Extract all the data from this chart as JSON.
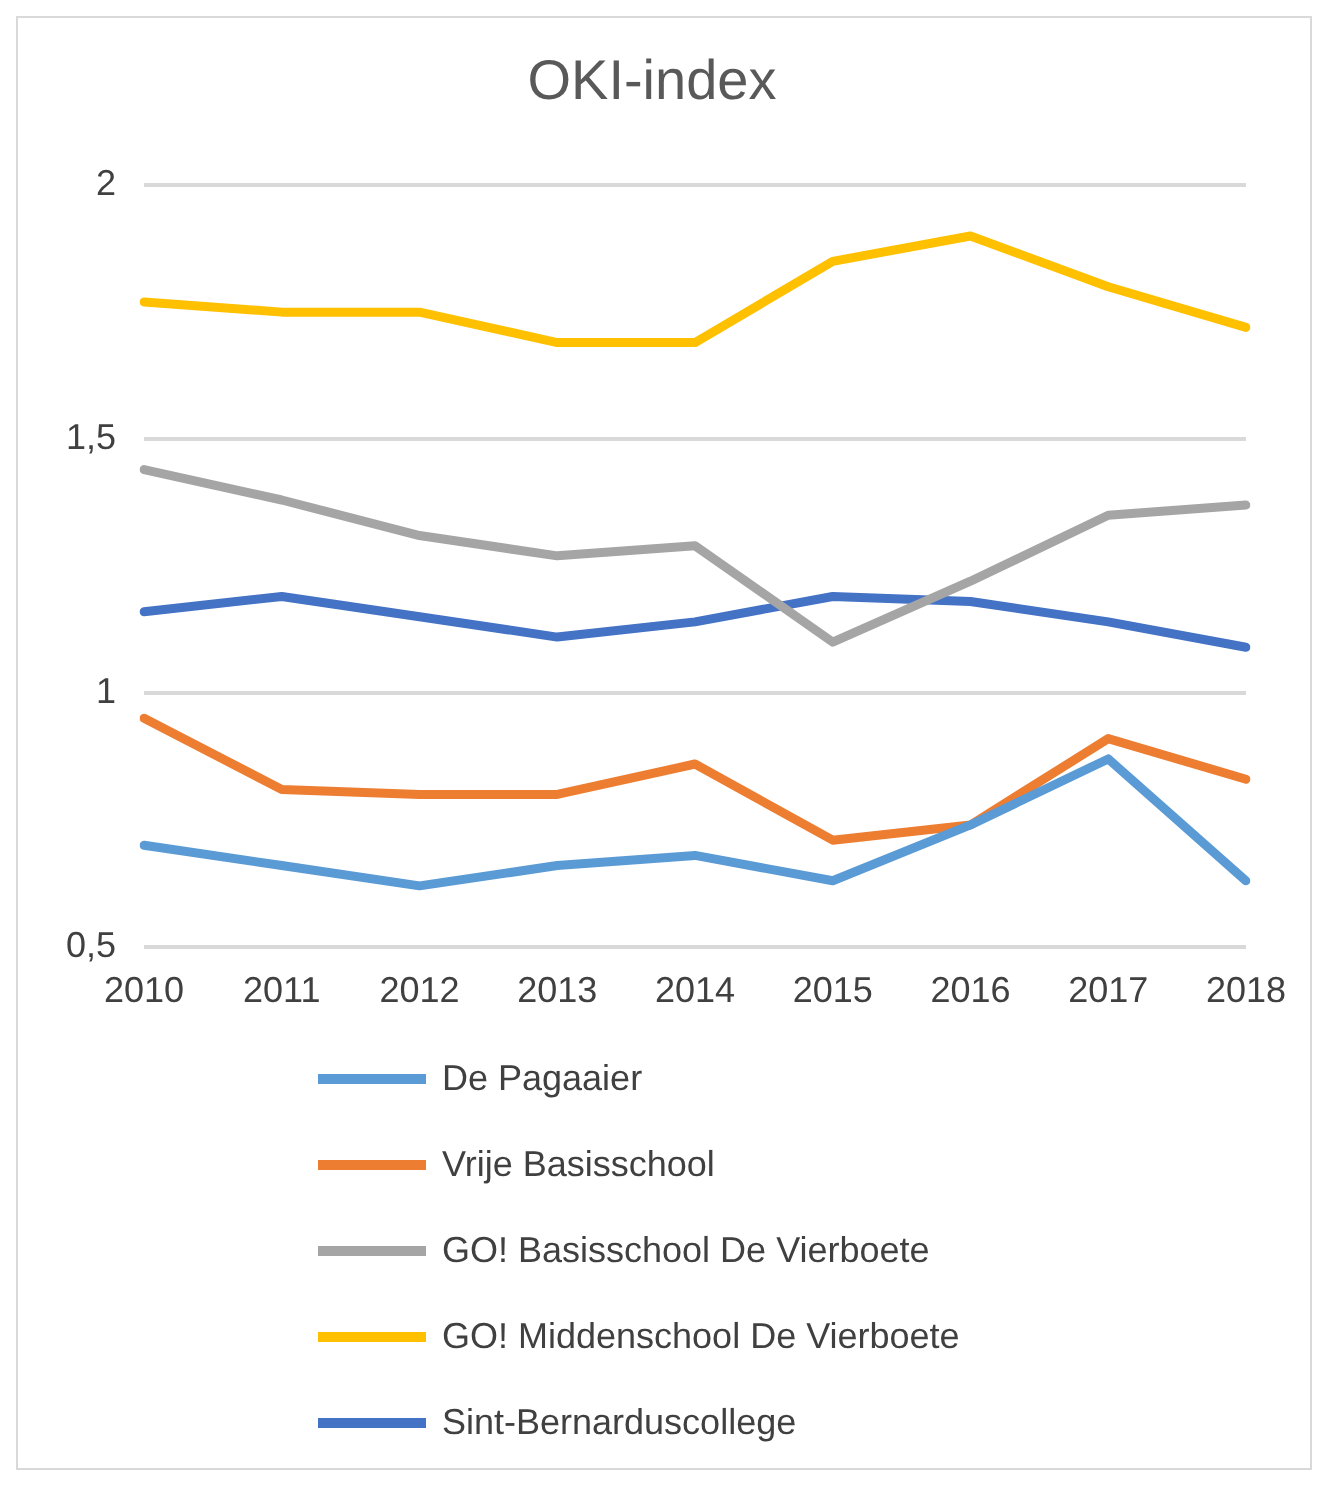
{
  "chart_data": {
    "type": "line",
    "title": "OKI-index",
    "categories": [
      "2010",
      "2011",
      "2012",
      "2013",
      "2014",
      "2015",
      "2016",
      "2017",
      "2018"
    ],
    "series": [
      {
        "name": "De Pagaaier",
        "color": "#5b9bd5",
        "values": [
          0.7,
          0.66,
          0.62,
          0.66,
          0.68,
          0.63,
          0.74,
          0.87,
          0.63
        ]
      },
      {
        "name": "Vrije Basisschool",
        "color": "#ed7d31",
        "values": [
          0.95,
          0.81,
          0.8,
          0.8,
          0.86,
          0.71,
          0.74,
          0.91,
          0.83
        ]
      },
      {
        "name": "GO! Basisschool De Vierboete",
        "color": "#a5a5a5",
        "values": [
          1.44,
          1.38,
          1.31,
          1.27,
          1.29,
          1.1,
          1.22,
          1.35,
          1.37
        ]
      },
      {
        "name": "GO! Middenschool De Vierboete",
        "color": "#ffc000",
        "values": [
          1.77,
          1.75,
          1.75,
          1.69,
          1.69,
          1.85,
          1.9,
          1.8,
          1.72
        ]
      },
      {
        "name": "Sint-Bernarduscollege",
        "color": "#4472c4",
        "values": [
          1.16,
          1.19,
          1.15,
          1.11,
          1.14,
          1.19,
          1.18,
          1.14,
          1.09
        ]
      }
    ],
    "ylim": [
      0.5,
      2
    ],
    "yticks": [
      {
        "value": 0.5,
        "label": "0,5"
      },
      1,
      {
        "value": 1.5,
        "label": "1,5"
      },
      2
    ],
    "grid": "y",
    "legend": "bottom",
    "marker": "none",
    "line_style": "solid"
  }
}
